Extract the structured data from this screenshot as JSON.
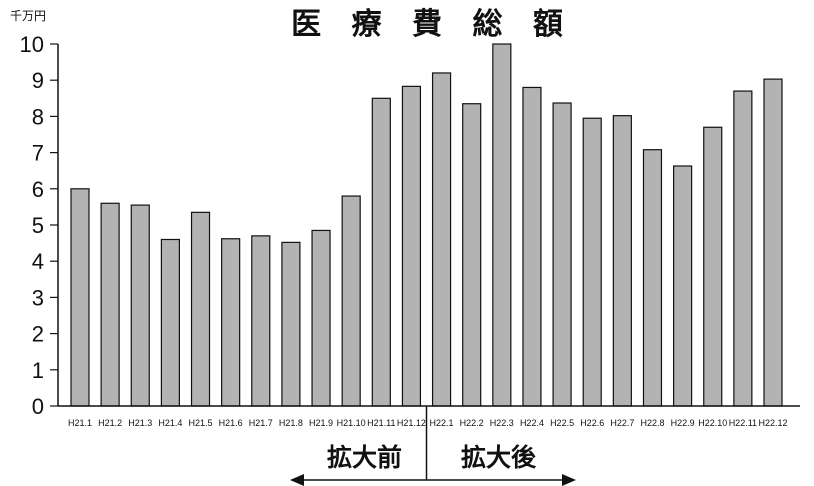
{
  "chart_data": {
    "type": "bar",
    "title": "医 療 費 総 額",
    "unit_label": "千万円",
    "categories": [
      "H21.1",
      "H21.2",
      "H21.3",
      "H21.4",
      "H21.5",
      "H21.6",
      "H21.7",
      "H21.8",
      "H21.9",
      "H21.10",
      "H21.11",
      "H21.12",
      "H22.1",
      "H22.2",
      "H22.3",
      "H22.4",
      "H22.5",
      "H22.6",
      "H22.7",
      "H22.8",
      "H22.9",
      "H22.10",
      "H22.11",
      "H22.12"
    ],
    "values": [
      6.0,
      5.6,
      5.55,
      4.6,
      5.35,
      4.62,
      4.7,
      4.52,
      4.85,
      5.8,
      8.5,
      8.83,
      9.2,
      8.35,
      10.0,
      8.8,
      8.37,
      7.95,
      8.02,
      7.08,
      6.63,
      7.7,
      8.7,
      9.03
    ],
    "ylim": [
      0,
      10
    ],
    "yticks": [
      "0",
      "1",
      "2",
      "3",
      "4",
      "5",
      "6",
      "7",
      "8",
      "9",
      "10"
    ],
    "bar_color": "#b3b3b3",
    "grid": false,
    "annotations": {
      "before_label": "拡大前",
      "after_label": "拡大後",
      "divider_after_category": "H21.12"
    }
  }
}
